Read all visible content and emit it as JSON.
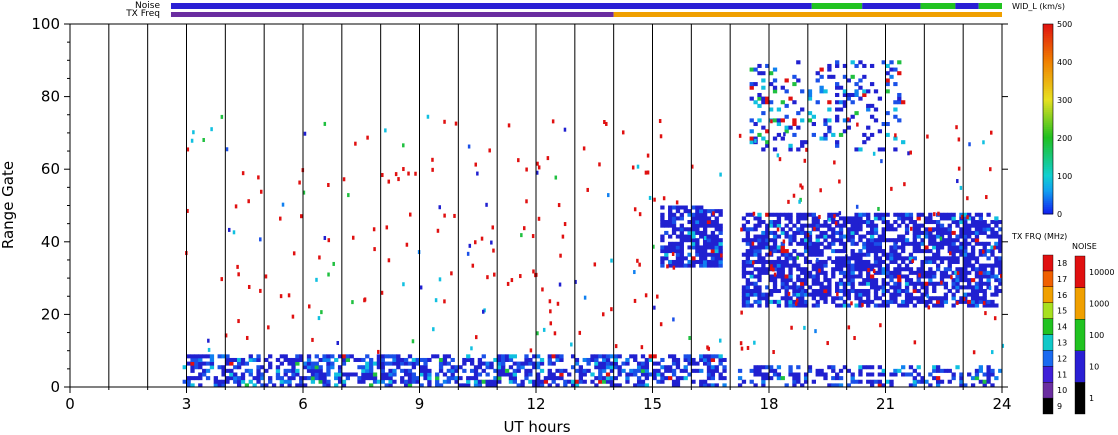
{
  "chart_data": {
    "type": "heatmap",
    "xlabel": "UT hours",
    "ylabel": "Range Gate",
    "xlim": [
      0,
      24
    ],
    "ylim": [
      0,
      100
    ],
    "xticks": [
      0,
      3,
      6,
      9,
      12,
      15,
      18,
      21,
      24
    ],
    "yticks": [
      0,
      20,
      40,
      60,
      80,
      100
    ],
    "scan_boundaries": [
      1,
      2,
      3,
      4,
      5,
      6,
      7,
      8,
      9,
      10,
      11,
      12,
      13,
      14,
      15,
      16,
      17,
      18,
      19,
      20,
      21,
      22,
      23,
      24
    ],
    "data_gap": [
      16.8,
      17.2
    ],
    "status_bars": {
      "noise_label": "Noise",
      "txfreq_label": "TX Freq",
      "noise_segments": [
        {
          "start": 2.6,
          "end": 19.1,
          "level": "10-100",
          "color": "#2a1fd4"
        },
        {
          "start": 19.1,
          "end": 20.4,
          "level": "100-1000",
          "color": "#21c321"
        },
        {
          "start": 20.4,
          "end": 21.9,
          "level": "10-100",
          "color": "#2a1fd4"
        },
        {
          "start": 21.9,
          "end": 22.8,
          "level": "100-1000",
          "color": "#21c321"
        },
        {
          "start": 22.8,
          "end": 23.4,
          "level": "10-100",
          "color": "#2a1fd4"
        },
        {
          "start": 23.4,
          "end": 24.0,
          "level": "100-1000",
          "color": "#21c321"
        }
      ],
      "txfreq_segments": [
        {
          "start": 2.6,
          "end": 14.0,
          "mhz": "10",
          "color": "#6a2da0"
        },
        {
          "start": 14.0,
          "end": 24.0,
          "mhz": "15-16",
          "color": "#f0a000"
        }
      ]
    },
    "regions": [
      {
        "name": "near-range scatter",
        "x": [
          2.9,
          16.8
        ],
        "y": [
          0,
          9
        ],
        "dominant_width_kms": "0-150"
      },
      {
        "name": "near-range scatter late",
        "x": [
          17.2,
          24.0
        ],
        "y": [
          0,
          6
        ],
        "dominant_width_kms": "0-100"
      },
      {
        "name": "ionospheric band 15-17 UT",
        "x": [
          15.2,
          16.8
        ],
        "y": [
          33,
          50
        ],
        "dominant_width_kms": "0-100"
      },
      {
        "name": "ionospheric band 17-24 UT",
        "x": [
          17.3,
          24.0
        ],
        "y": [
          22,
          48
        ],
        "dominant_width_kms": "0-100"
      },
      {
        "name": "high-range patch",
        "x": [
          17.5,
          21.5
        ],
        "y": [
          65,
          90
        ],
        "dominant_width_kms": "0-200"
      }
    ],
    "width_colorbar": {
      "title": "WID_L (km/s)",
      "range": [
        0,
        500
      ],
      "ticks": [
        0,
        100,
        200,
        300,
        400,
        500
      ]
    },
    "txfreq_colorbar": {
      "title": "TX FRQ (MHz)",
      "levels": [
        "9",
        "10",
        "11",
        "12",
        "13",
        "14",
        "15",
        "16",
        "17",
        "18"
      ],
      "colors": [
        "#000000",
        "#6a2da0",
        "#3f1fd8",
        "#1a6af0",
        "#10c8c8",
        "#21c321",
        "#a8e020",
        "#f0a000",
        "#f06000",
        "#e01010"
      ]
    },
    "noise_colorbar": {
      "title": "NOISE",
      "levels": [
        "1",
        "10",
        "100",
        "1000",
        "10000"
      ],
      "colors": [
        "#000000",
        "#2a1fd4",
        "#21c321",
        "#f0a000",
        "#e01010"
      ]
    }
  }
}
